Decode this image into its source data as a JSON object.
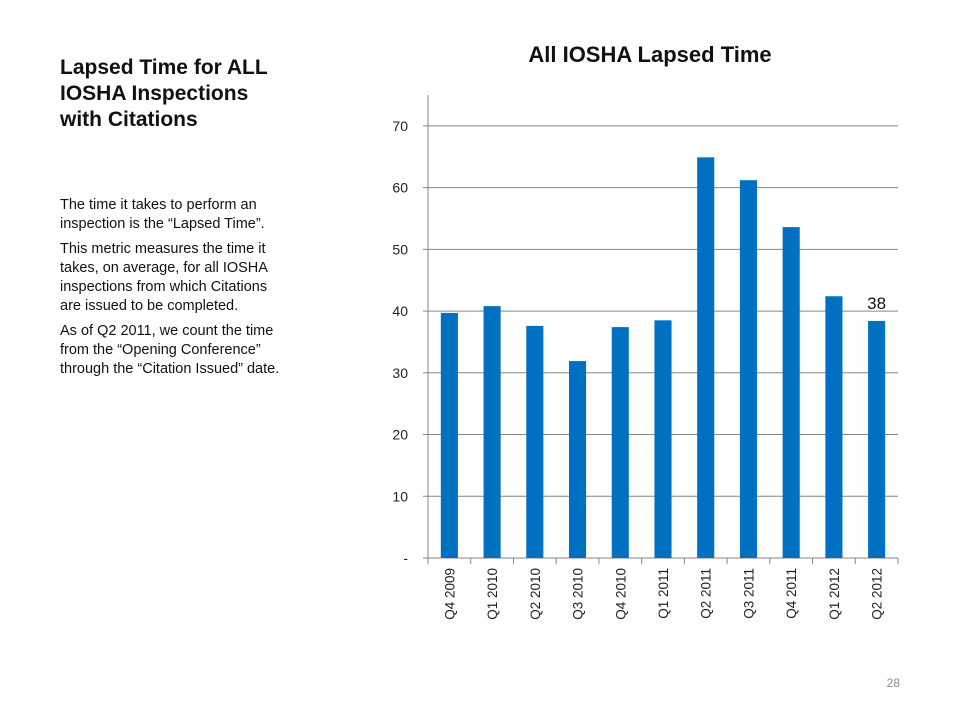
{
  "slide": {
    "title": "Lapsed Time for ALL IOSHA Inspections with Citations",
    "paragraphs": [
      "The time it takes to perform an inspection is the “Lapsed Time”.",
      "This metric measures the time it takes, on average, for all IOSHA inspections from which Citations are issued to be completed.",
      "As of Q2 2011, we count the time from the “Opening Conference” through the “Citation Issued” date."
    ],
    "page_number": "28"
  },
  "chart_data": {
    "type": "bar",
    "title": "All IOSHA Lapsed Time",
    "xlabel": "",
    "ylabel": "",
    "categories": [
      "Q4 2009",
      "Q1 2010",
      "Q2 2010",
      "Q3 2010",
      "Q4 2010",
      "Q1 2011",
      "Q2 2011",
      "Q3 2011",
      "Q4 2011",
      "Q1 2012",
      "Q2 2012"
    ],
    "values": [
      39.7,
      40.8,
      37.6,
      31.9,
      37.4,
      38.5,
      64.9,
      61.2,
      53.6,
      42.4,
      38.4
    ],
    "ylim": [
      0,
      75
    ],
    "yticks": [
      0,
      10,
      20,
      30,
      40,
      50,
      60,
      70
    ],
    "ytick_labels": [
      "-",
      "10",
      "20",
      "30",
      "40",
      "50",
      "60",
      "70"
    ],
    "data_labels": [
      {
        "category": "Q2 2012",
        "text": "38"
      }
    ],
    "bar_color": "#0070c0",
    "grid": true,
    "legend": "none"
  }
}
